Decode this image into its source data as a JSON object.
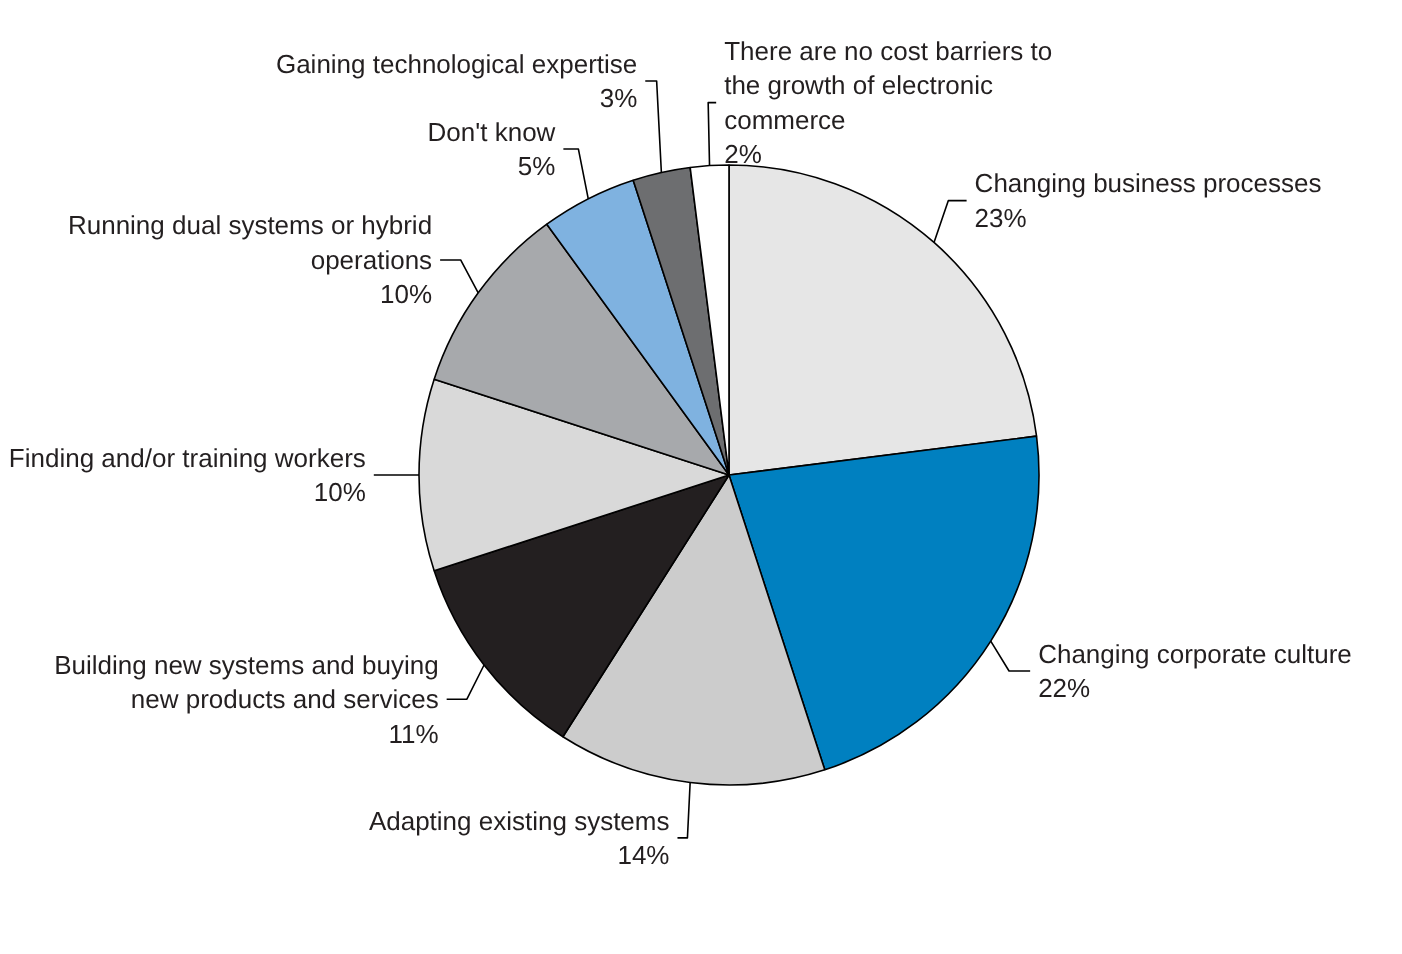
{
  "chart_data": {
    "type": "pie",
    "categories": [
      "Changing business processes",
      "Changing corporate culture",
      "Adapting existing systems",
      "Building new systems and buying new products and services",
      "Finding and/or training workers",
      "Running dual systems or hybrid operations",
      "Don't know",
      "Gaining technological expertise",
      "There are no cost barriers to the growth of electronic commerce"
    ],
    "values": [
      23,
      22,
      14,
      11,
      10,
      10,
      5,
      3,
      2
    ],
    "value_labels": [
      "23%",
      "22%",
      "14%",
      "11%",
      "10%",
      "10%",
      "5%",
      "3%",
      "2%"
    ],
    "colors": [
      "#e6e6e6",
      "#0080c0",
      "#cccccc",
      "#231f20",
      "#d9d9d9",
      "#a7a9ac",
      "#7fb2e0",
      "#6d6e70",
      "#ffffff"
    ]
  }
}
